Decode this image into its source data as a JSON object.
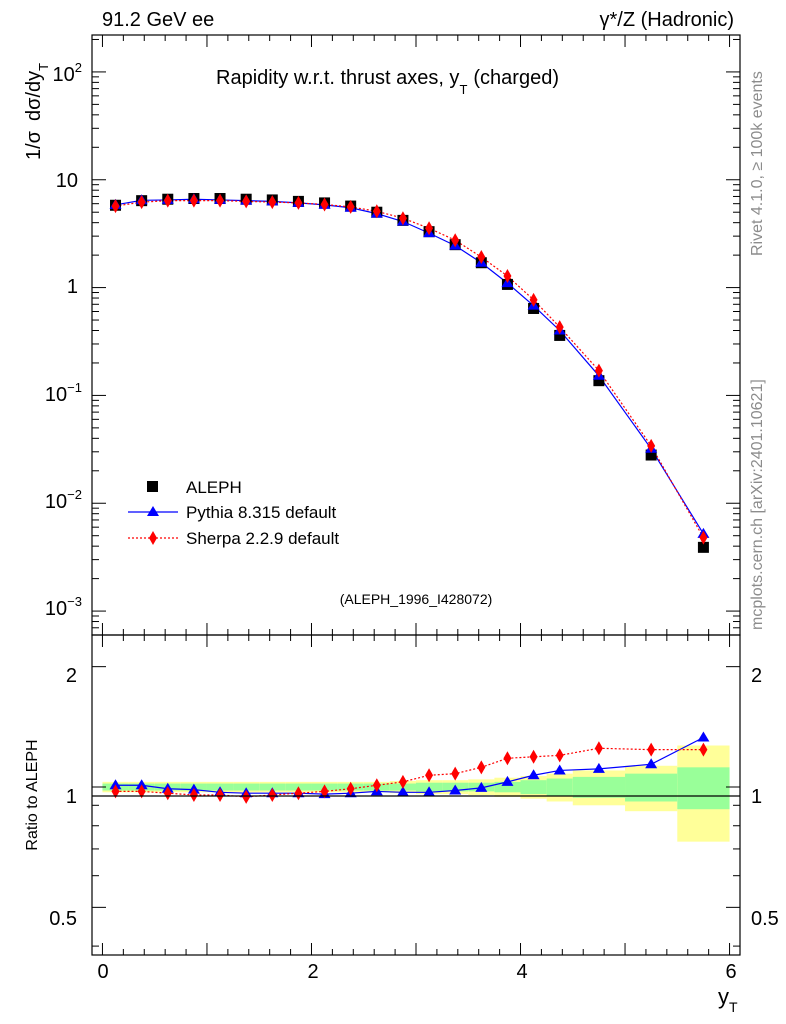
{
  "header": {
    "energy": "91.2 GeV ee",
    "process": "γ*/Z (Hadronic)",
    "rivet": "Rivet 4.1.0, ≥ 100k events",
    "site": "mcplots.cern.ch [arXiv:2401.10621]"
  },
  "upper": {
    "title_main": "Rapidity w.r.t. thrust axes, y",
    "title_sub": "T",
    "title_tail": "(charged)",
    "ylabel_a": "1/σ",
    "ylabel_b": "dσ/dy",
    "ylabel_sub": "T",
    "analysis": "(ALEPH_1996_I428072)",
    "ytick_labels": [
      {
        "base": "10",
        "exp": "2"
      },
      {
        "base": "10",
        "exp": ""
      },
      {
        "base": "1",
        "exp": ""
      },
      {
        "base": "10",
        "exp": "−1"
      },
      {
        "base": "10",
        "exp": "−2"
      },
      {
        "base": "10",
        "exp": "−3"
      }
    ]
  },
  "legend": [
    "ALEPH",
    "Pythia 8.315 default",
    "Sherpa 2.2.9 default"
  ],
  "lower": {
    "ylabel": "Ratio to ALEPH",
    "ytick_labels": [
      "2",
      "1",
      "0.5"
    ]
  },
  "xaxis": {
    "tick_labels": [
      "0",
      "2",
      "4",
      "6"
    ],
    "label": "y",
    "label_sub": "T"
  },
  "colors": {
    "data": "#000000",
    "pythia": "#0000ff",
    "sherpa": "#ff0000",
    "band_outer": "#ffff99",
    "band_inner": "#99ff99"
  },
  "chart_data": {
    "type": "scatter",
    "xlim": [
      -0.1,
      6.1
    ],
    "ylim_main": [
      0.0006,
      220
    ],
    "ylim_ratio": [
      0.38,
      2.4
    ],
    "x": [
      0.125,
      0.375,
      0.625,
      0.875,
      1.125,
      1.375,
      1.625,
      1.875,
      2.125,
      2.375,
      2.625,
      2.875,
      3.125,
      3.375,
      3.625,
      3.875,
      4.125,
      4.375,
      4.75,
      5.25,
      5.75
    ],
    "x_edges": [
      0,
      0.25,
      0.5,
      0.75,
      1.0,
      1.25,
      1.5,
      1.75,
      2.0,
      2.25,
      2.5,
      2.75,
      3.0,
      3.25,
      3.5,
      3.75,
      4.0,
      4.25,
      4.5,
      5.0,
      5.5,
      6.0
    ],
    "series": [
      {
        "name": "ALEPH",
        "marker": "square",
        "values": [
          5.8,
          6.4,
          6.6,
          6.7,
          6.7,
          6.6,
          6.5,
          6.3,
          6.1,
          5.7,
          5.0,
          4.2,
          3.3,
          2.5,
          1.7,
          1.07,
          0.64,
          0.36,
          0.137,
          0.028,
          0.0039
        ]
      },
      {
        "name": "Pythia 8.315 default",
        "marker": "triangle",
        "values": [
          5.85,
          6.45,
          6.5,
          6.6,
          6.5,
          6.4,
          6.3,
          6.1,
          5.85,
          5.5,
          4.85,
          4.1,
          3.2,
          2.45,
          1.7,
          1.1,
          0.68,
          0.4,
          0.152,
          0.032,
          0.0052
        ],
        "ratio": [
          1.01,
          1.01,
          0.99,
          0.985,
          0.97,
          0.965,
          0.965,
          0.965,
          0.96,
          0.965,
          0.975,
          0.97,
          0.97,
          0.98,
          0.995,
          1.03,
          1.07,
          1.1,
          1.11,
          1.14,
          1.33
        ]
      },
      {
        "name": "Sherpa 2.2.9 default",
        "marker": "diamond",
        "values": [
          5.7,
          6.2,
          6.4,
          6.4,
          6.4,
          6.3,
          6.2,
          6.1,
          5.9,
          5.6,
          5.1,
          4.4,
          3.55,
          2.75,
          1.92,
          1.28,
          0.77,
          0.43,
          0.17,
          0.034,
          0.0048
        ],
        "ratio": [
          0.975,
          0.975,
          0.965,
          0.955,
          0.955,
          0.945,
          0.955,
          0.965,
          0.975,
          0.99,
          1.01,
          1.03,
          1.07,
          1.08,
          1.12,
          1.18,
          1.19,
          1.2,
          1.25,
          1.24,
          1.24
        ]
      }
    ],
    "ratio_band_inner": [
      0.02,
      0.02,
      0.02,
      0.02,
      0.02,
      0.02,
      0.02,
      0.02,
      0.02,
      0.02,
      0.02,
      0.02,
      0.025,
      0.025,
      0.025,
      0.03,
      0.04,
      0.05,
      0.06,
      0.08,
      0.12
    ],
    "ratio_band_outer": [
      0.03,
      0.03,
      0.03,
      0.03,
      0.03,
      0.03,
      0.03,
      0.03,
      0.03,
      0.03,
      0.03,
      0.035,
      0.04,
      0.04,
      0.045,
      0.055,
      0.065,
      0.08,
      0.1,
      0.13,
      0.27
    ]
  }
}
